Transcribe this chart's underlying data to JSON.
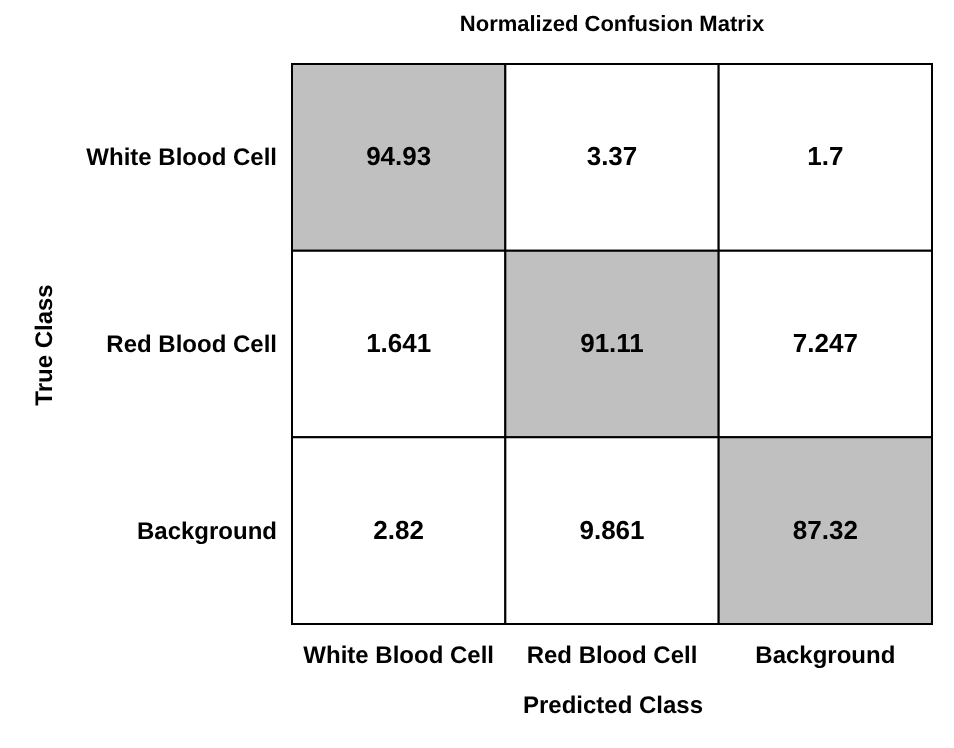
{
  "chart_data": {
    "type": "heatmap",
    "title": "Normalized Confusion Matrix",
    "xlabel": "Predicted Class",
    "ylabel": "True Class",
    "categories": [
      "White Blood Cell",
      "Red Blood Cell",
      "Background"
    ],
    "y_categories": [
      "White Blood Cell",
      "Red Blood Cell",
      "Background"
    ],
    "cells": [
      [
        94.93,
        3.37,
        1.7
      ],
      [
        1.641,
        91.11,
        7.247
      ],
      [
        2.82,
        9.861,
        87.32
      ]
    ],
    "data_labels": true
  }
}
